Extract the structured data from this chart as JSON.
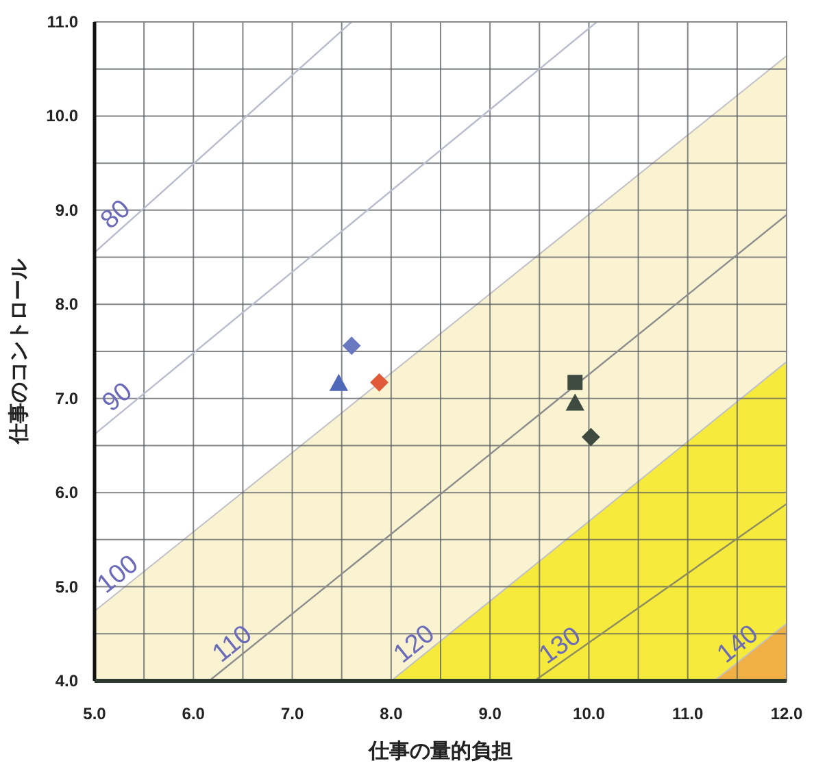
{
  "chart_data": {
    "type": "scatter",
    "xlabel": "仕事の量的負担",
    "ylabel": "仕事のコントロール",
    "xlim": [
      5.0,
      12.0
    ],
    "ylim": [
      4.0,
      11.0
    ],
    "xticks": [
      {
        "value": 5.0,
        "label": "5.0"
      },
      {
        "value": 5.5,
        "label": null
      },
      {
        "value": 6.0,
        "label": "6.0"
      },
      {
        "value": 6.5,
        "label": null
      },
      {
        "value": 7.0,
        "label": "7.0"
      },
      {
        "value": 7.5,
        "label": null
      },
      {
        "value": 8.0,
        "label": "8.0"
      },
      {
        "value": 8.5,
        "label": null
      },
      {
        "value": 9.0,
        "label": "9.0"
      },
      {
        "value": 9.5,
        "label": null
      },
      {
        "value": 10.0,
        "label": "10.0"
      },
      {
        "value": 10.5,
        "label": null
      },
      {
        "value": 11.0,
        "label": "11.0"
      },
      {
        "value": 11.5,
        "label": null
      },
      {
        "value": 12.0,
        "label": "12.0"
      }
    ],
    "yticks": [
      {
        "value": 4.0,
        "label": "4.0"
      },
      {
        "value": 4.5,
        "label": null
      },
      {
        "value": 5.0,
        "label": "5.0"
      },
      {
        "value": 5.5,
        "label": null
      },
      {
        "value": 6.0,
        "label": "6.0"
      },
      {
        "value": 6.5,
        "label": null
      },
      {
        "value": 7.0,
        "label": "7.0"
      },
      {
        "value": 7.5,
        "label": null
      },
      {
        "value": 8.0,
        "label": "8.0"
      },
      {
        "value": 8.5,
        "label": null
      },
      {
        "value": 9.0,
        "label": "9.0"
      },
      {
        "value": 9.5,
        "label": null
      },
      {
        "value": 10.0,
        "label": "10.0"
      },
      {
        "value": 10.5,
        "label": null
      },
      {
        "value": 11.0,
        "label": "11.0"
      }
    ],
    "grid": true,
    "legend": false,
    "series": [
      {
        "type": "area",
        "name": "100",
        "color": "#f9f3d2",
        "x": [
          5.0,
          12.0
        ],
        "values": [
          4.74,
          10.64
        ]
      },
      {
        "type": "area",
        "name": "120",
        "color": "#f6ea3c",
        "x": [
          8.0,
          12.0
        ],
        "values": [
          4.0,
          7.39
        ]
      },
      {
        "type": "area",
        "name": "140",
        "color": "#f0b044",
        "x": [
          11.27,
          12.0
        ],
        "values": [
          4.0,
          4.61
        ]
      },
      {
        "type": "line",
        "name": "80",
        "color": "#b8bccc",
        "x": [
          5.0,
          7.6
        ],
        "values": [
          8.55,
          11.0
        ]
      },
      {
        "type": "line",
        "name": "90",
        "color": "#b8bccc",
        "x": [
          5.0,
          10.08
        ],
        "values": [
          6.62,
          11.0
        ]
      },
      {
        "type": "line",
        "name": "110",
        "color": "#8c8c8c",
        "x": [
          6.16,
          12.0
        ],
        "values": [
          4.0,
          8.95
        ]
      },
      {
        "type": "line",
        "name": "130",
        "color": "#8c8c60",
        "x": [
          9.45,
          12.0
        ],
        "values": [
          4.0,
          5.88
        ]
      },
      {
        "marker": "diamond",
        "color": "#6a78c0",
        "x": [
          7.6
        ],
        "values": [
          7.56
        ]
      },
      {
        "marker": "triangle",
        "color": "#5068b8",
        "x": [
          7.47
        ],
        "values": [
          7.16
        ]
      },
      {
        "marker": "diamond",
        "color": "#e05a3a",
        "x": [
          7.88
        ],
        "values": [
          7.17
        ]
      },
      {
        "marker": "square",
        "color": "#3f4a40",
        "x": [
          9.86
        ],
        "values": [
          7.17
        ]
      },
      {
        "marker": "triangle",
        "color": "#3f4a40",
        "x": [
          9.86
        ],
        "values": [
          6.95
        ]
      },
      {
        "marker": "diamond",
        "color": "#3f4a40",
        "x": [
          10.02
        ],
        "values": [
          6.59
        ]
      }
    ]
  }
}
